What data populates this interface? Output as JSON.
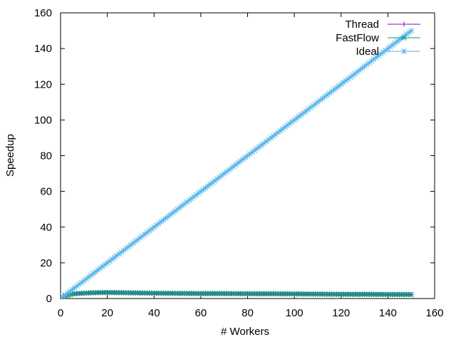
{
  "chart_data": {
    "type": "line",
    "title": "",
    "xlabel": "# Workers",
    "ylabel": "Speedup",
    "xlim": [
      0,
      160
    ],
    "ylim": [
      0,
      160
    ],
    "xticks": [
      0,
      20,
      40,
      60,
      80,
      100,
      120,
      140,
      160
    ],
    "yticks": [
      0,
      20,
      40,
      60,
      80,
      100,
      120,
      140,
      160
    ],
    "grid": false,
    "legend_position": "top-right",
    "series": [
      {
        "name": "Thread",
        "color": "#9400d3",
        "marker": "plus",
        "x": [
          1,
          5,
          10,
          15,
          20,
          25,
          30,
          40,
          50,
          60,
          70,
          80,
          90,
          100,
          110,
          120,
          130,
          140,
          150
        ],
        "y": [
          1.0,
          2.5,
          3.0,
          3.2,
          3.3,
          3.2,
          3.1,
          2.9,
          2.8,
          2.7,
          2.7,
          2.6,
          2.6,
          2.5,
          2.4,
          2.3,
          2.3,
          2.2,
          2.2
        ]
      },
      {
        "name": "FastFlow",
        "color": "#009e73",
        "marker": "x",
        "x": [
          1,
          5,
          10,
          15,
          20,
          25,
          30,
          40,
          50,
          60,
          70,
          80,
          90,
          100,
          110,
          120,
          130,
          140,
          150
        ],
        "y": [
          1.0,
          2.6,
          3.0,
          3.3,
          3.4,
          3.3,
          3.2,
          3.0,
          2.9,
          2.8,
          2.8,
          2.7,
          2.7,
          2.6,
          2.5,
          2.4,
          2.4,
          2.3,
          2.3
        ]
      },
      {
        "name": "Ideal",
        "color": "#56b4e9",
        "marker": "star",
        "x": [
          1,
          150
        ],
        "y": [
          1,
          150
        ]
      }
    ]
  }
}
